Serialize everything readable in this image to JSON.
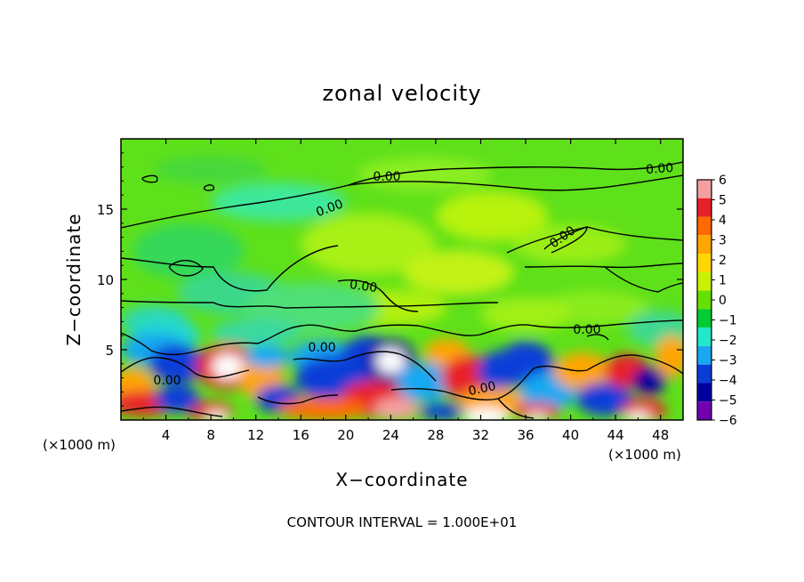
{
  "chart_data": {
    "type": "heatmap",
    "title": "zonal velocity",
    "xlabel": "X−coordinate",
    "ylabel": "Z−coordinate",
    "x_unit_left": "(×1000 m)",
    "x_unit_right": "(×1000 m)",
    "footer": "CONTOUR INTERVAL = 1.000E+01",
    "xlim": [
      0,
      50
    ],
    "ylim": [
      0,
      20
    ],
    "x_ticks": [
      4,
      8,
      12,
      16,
      20,
      24,
      28,
      32,
      36,
      40,
      44,
      48
    ],
    "y_ticks": [
      5,
      10,
      15
    ],
    "colorbar": {
      "levels": [
        6,
        5,
        4,
        3,
        2,
        1,
        0,
        -1,
        -2,
        -3,
        -4,
        -5,
        -6
      ],
      "colors": [
        "#f5a0a0",
        "#e8202a",
        "#ff6a00",
        "#ffa500",
        "#ffd700",
        "#c8f000",
        "#66e000",
        "#00cc33",
        "#20e8c8",
        "#18a8f0",
        "#0a3cd8",
        "#0000a0",
        "#7000b0"
      ]
    },
    "contour_labels": [
      "0.00",
      "0.00",
      "0.00",
      "0.00",
      "0.00",
      "0.00",
      "0.00",
      "0.00",
      "0.00"
    ],
    "contour_level": 0.0
  }
}
